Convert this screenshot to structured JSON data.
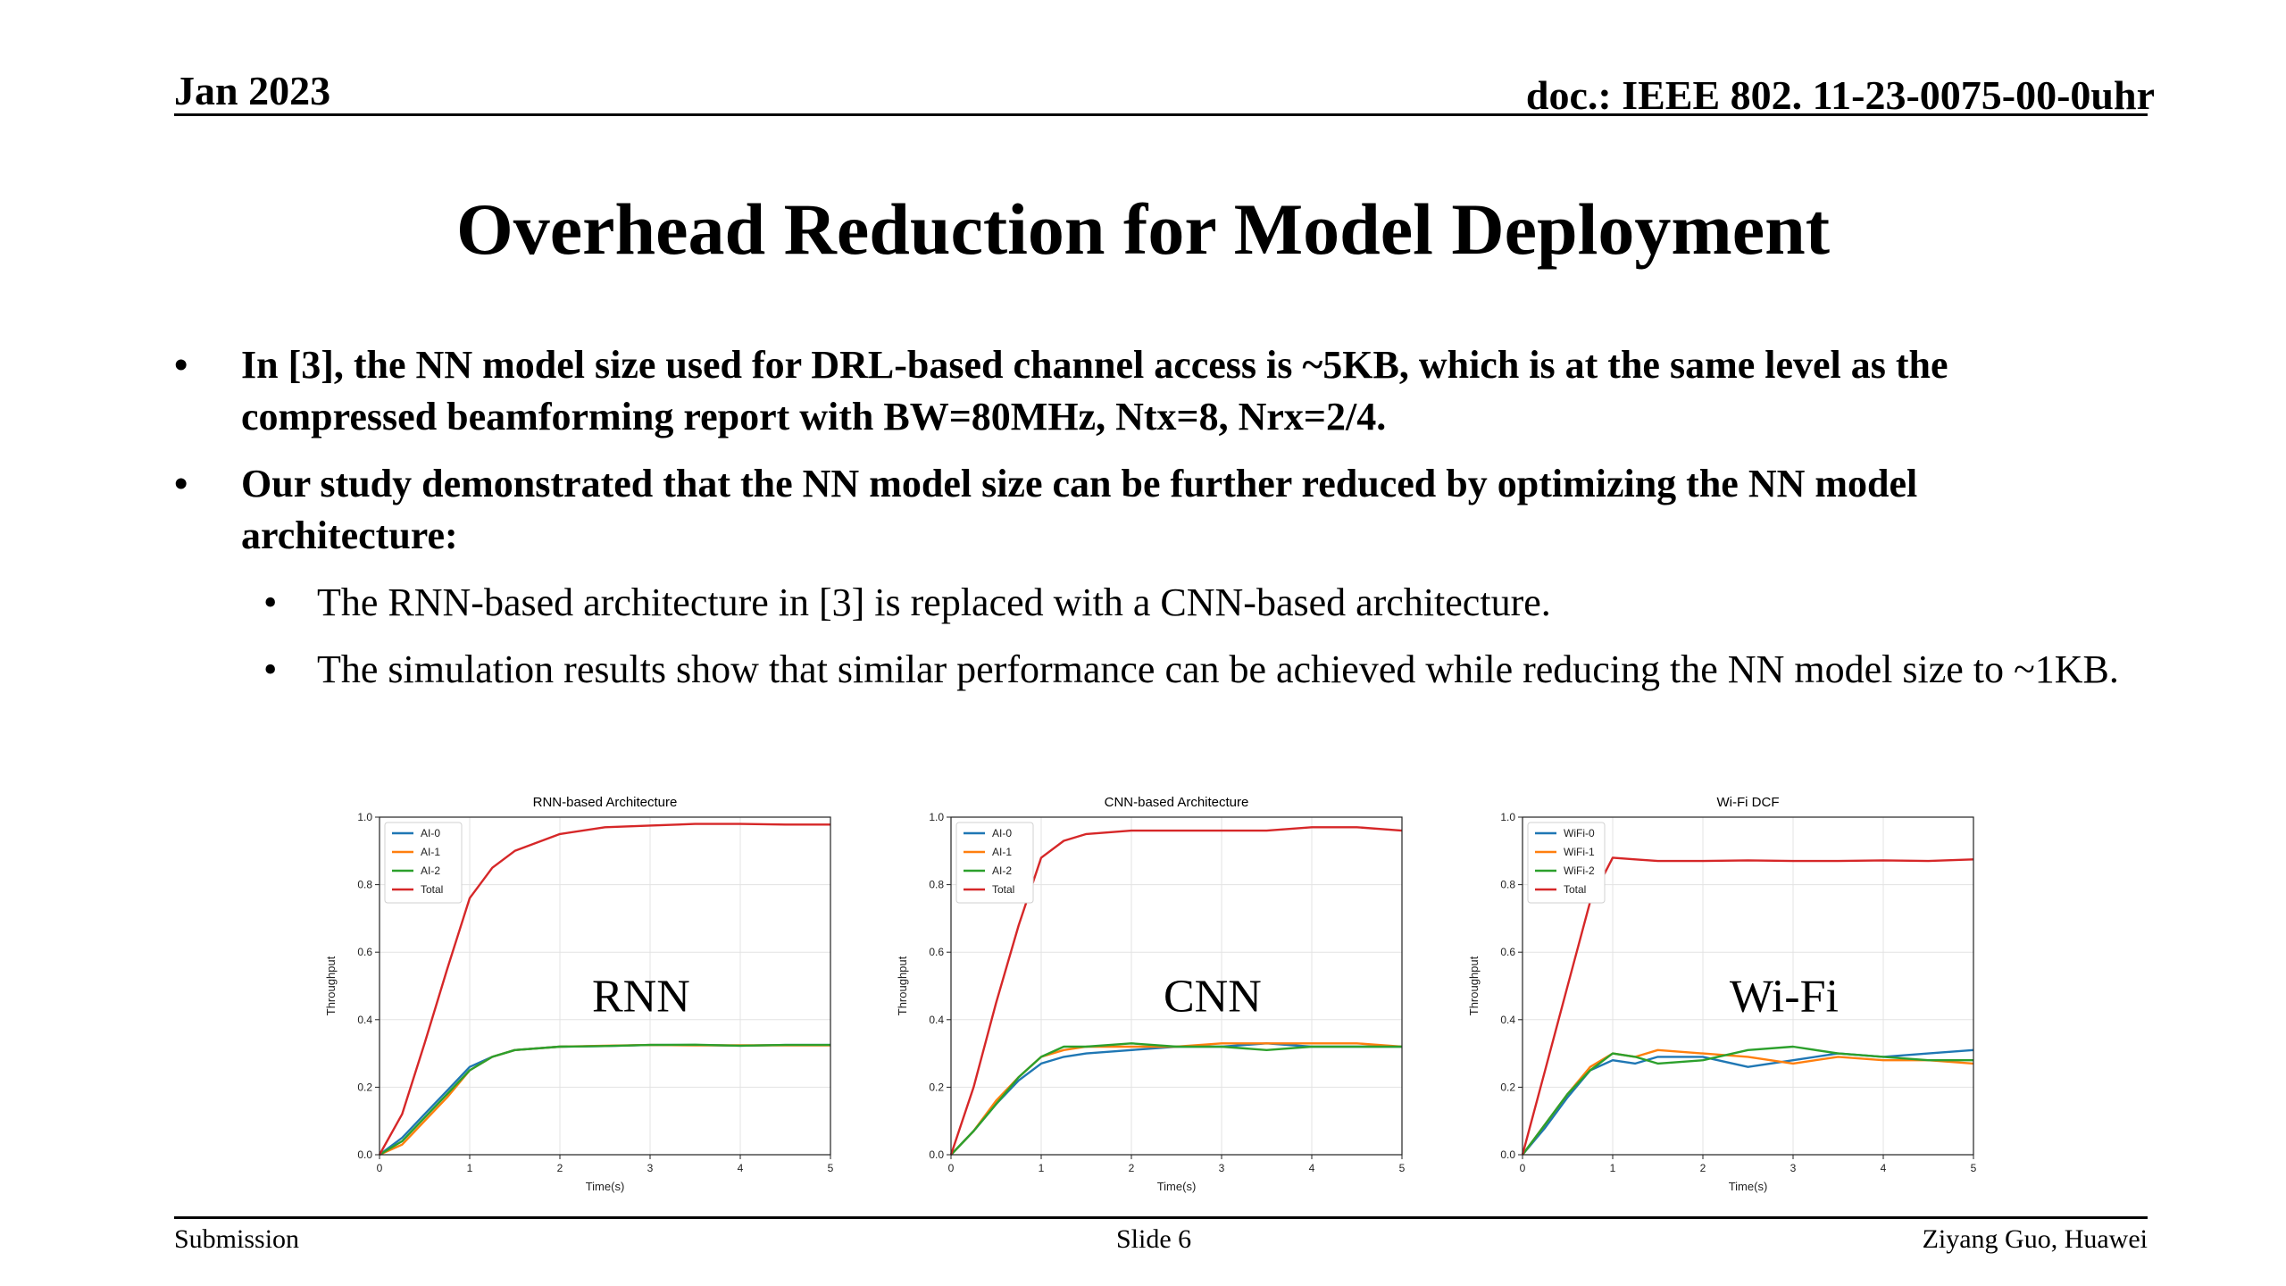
{
  "header": {
    "date": "Jan 2023",
    "doc": "doc.: IEEE 802. 11-23-0075-00-0uhr"
  },
  "title": "Overhead Reduction for Model Deployment",
  "bullets": [
    {
      "level": 1,
      "text": "In [3], the NN model size used for DRL-based channel access is ~5KB, which is at the same level as the compressed beamforming report with BW=80MHz, Ntx=8, Nrx=2/4."
    },
    {
      "level": 1,
      "text": "Our study demonstrated that the NN model size can be further reduced by optimizing the NN model architecture:"
    },
    {
      "level": 2,
      "text": "The RNN-based architecture in [3] is replaced with a CNN-based architecture."
    },
    {
      "level": 2,
      "text": "The simulation results show that similar performance can be achieved while reducing the NN model size to ~1KB."
    }
  ],
  "bullet_glyph": "•",
  "footer": {
    "left": "Submission",
    "center": "Slide 6",
    "right": "Ziyang Guo, Huawei"
  },
  "colors": {
    "series_0": "#1f77b4",
    "series_1": "#ff7f0e",
    "series_2": "#2ca02c",
    "series_total": "#d62728"
  },
  "chart_data": [
    {
      "type": "line",
      "title": "RNN-based Architecture",
      "overlay_label": "RNN",
      "xlabel": "Time(s)",
      "ylabel": "Throughput",
      "xlim": [
        0,
        5
      ],
      "ylim": [
        0,
        1.0
      ],
      "xticks": [
        "0",
        "1",
        "2",
        "3",
        "4",
        "5"
      ],
      "yticks": [
        "0.0",
        "0.2",
        "0.4",
        "0.6",
        "0.8",
        "1.0"
      ],
      "grid": true,
      "legend": "top-left",
      "x": [
        0,
        0.25,
        0.5,
        0.75,
        1.0,
        1.25,
        1.5,
        2.0,
        2.5,
        3.0,
        3.5,
        4.0,
        4.5,
        5.0
      ],
      "series": [
        {
          "name": "AI-0",
          "values": [
            0.0,
            0.05,
            0.12,
            0.19,
            0.26,
            0.29,
            0.31,
            0.32,
            0.322,
            0.325,
            0.325,
            0.323,
            0.325,
            0.325
          ]
        },
        {
          "name": "AI-1",
          "values": [
            0.0,
            0.03,
            0.1,
            0.17,
            0.25,
            0.29,
            0.31,
            0.32,
            0.323,
            0.325,
            0.324,
            0.324,
            0.324,
            0.324
          ]
        },
        {
          "name": "AI-2",
          "values": [
            0.0,
            0.04,
            0.11,
            0.18,
            0.25,
            0.29,
            0.31,
            0.32,
            0.322,
            0.325,
            0.326,
            0.323,
            0.325,
            0.325
          ]
        },
        {
          "name": "Total",
          "values": [
            0.0,
            0.12,
            0.33,
            0.55,
            0.76,
            0.85,
            0.9,
            0.95,
            0.97,
            0.975,
            0.98,
            0.98,
            0.978,
            0.978
          ]
        }
      ]
    },
    {
      "type": "line",
      "title": "CNN-based Architecture",
      "overlay_label": "CNN",
      "xlabel": "Time(s)",
      "ylabel": "Throughput",
      "xlim": [
        0,
        5
      ],
      "ylim": [
        0,
        1.0
      ],
      "xticks": [
        "0",
        "1",
        "2",
        "3",
        "4",
        "5"
      ],
      "yticks": [
        "0.0",
        "0.2",
        "0.4",
        "0.6",
        "0.8",
        "1.0"
      ],
      "grid": true,
      "legend": "top-left",
      "x": [
        0,
        0.25,
        0.5,
        0.75,
        1.0,
        1.25,
        1.5,
        2.0,
        2.5,
        3.0,
        3.5,
        4.0,
        4.5,
        5.0
      ],
      "series": [
        {
          "name": "AI-0",
          "values": [
            0.0,
            0.07,
            0.15,
            0.22,
            0.27,
            0.29,
            0.3,
            0.31,
            0.32,
            0.32,
            0.33,
            0.32,
            0.32,
            0.32
          ]
        },
        {
          "name": "AI-1",
          "values": [
            0.0,
            0.07,
            0.16,
            0.23,
            0.29,
            0.31,
            0.32,
            0.32,
            0.32,
            0.33,
            0.33,
            0.33,
            0.33,
            0.32
          ]
        },
        {
          "name": "AI-2",
          "values": [
            0.0,
            0.07,
            0.15,
            0.23,
            0.29,
            0.32,
            0.32,
            0.33,
            0.32,
            0.32,
            0.31,
            0.32,
            0.32,
            0.32
          ]
        },
        {
          "name": "Total",
          "values": [
            0.0,
            0.2,
            0.45,
            0.68,
            0.88,
            0.93,
            0.95,
            0.96,
            0.96,
            0.96,
            0.96,
            0.97,
            0.97,
            0.96
          ]
        }
      ]
    },
    {
      "type": "line",
      "title": "Wi-Fi DCF",
      "overlay_label": "Wi-Fi",
      "xlabel": "Time(s)",
      "ylabel": "Throughput",
      "xlim": [
        0,
        5
      ],
      "ylim": [
        0,
        1.0
      ],
      "xticks": [
        "0",
        "1",
        "2",
        "3",
        "4",
        "5"
      ],
      "yticks": [
        "0.0",
        "0.2",
        "0.4",
        "0.6",
        "0.8",
        "1.0"
      ],
      "grid": true,
      "legend": "top-left",
      "x": [
        0,
        0.25,
        0.5,
        0.75,
        1.0,
        1.25,
        1.5,
        2.0,
        2.5,
        3.0,
        3.5,
        4.0,
        4.5,
        5.0
      ],
      "series": [
        {
          "name": "WiFi-0",
          "values": [
            0.0,
            0.08,
            0.17,
            0.25,
            0.28,
            0.27,
            0.29,
            0.29,
            0.26,
            0.28,
            0.3,
            0.29,
            0.3,
            0.31
          ]
        },
        {
          "name": "WiFi-1",
          "values": [
            0.0,
            0.09,
            0.18,
            0.26,
            0.3,
            0.29,
            0.31,
            0.3,
            0.29,
            0.27,
            0.29,
            0.28,
            0.28,
            0.27
          ]
        },
        {
          "name": "WiFi-2",
          "values": [
            0.0,
            0.09,
            0.18,
            0.25,
            0.3,
            0.29,
            0.27,
            0.28,
            0.31,
            0.32,
            0.3,
            0.29,
            0.28,
            0.28
          ]
        },
        {
          "name": "Total",
          "values": [
            0.0,
            0.25,
            0.5,
            0.75,
            0.88,
            0.875,
            0.87,
            0.87,
            0.872,
            0.87,
            0.87,
            0.872,
            0.87,
            0.875
          ]
        }
      ]
    }
  ]
}
